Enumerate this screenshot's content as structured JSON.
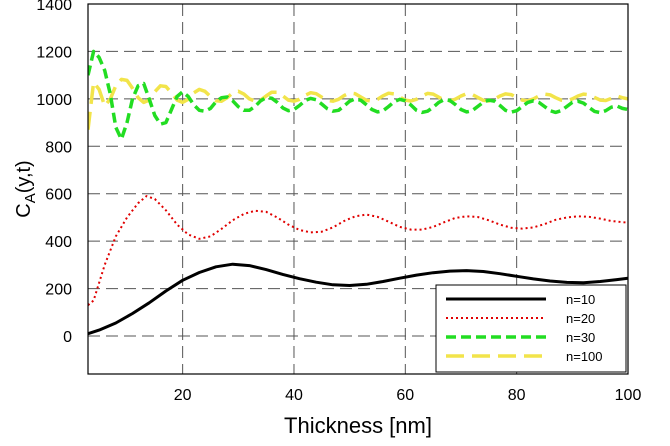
{
  "chart_data": {
    "type": "line",
    "title": "",
    "xlabel": "Thickness [nm]",
    "ylabel_main": "C",
    "ylabel_sub": "A",
    "ylabel_rest": "(y,t)",
    "xlim": [
      3,
      100
    ],
    "ylim": [
      -160,
      1400
    ],
    "x_ticks": [
      20,
      40,
      60,
      80,
      100
    ],
    "y_ticks": [
      0,
      200,
      400,
      600,
      800,
      1000,
      1200,
      1400
    ],
    "grid": true,
    "legend_position": "bottom-right",
    "series": [
      {
        "name": "n=10",
        "color": "#000000",
        "style": "solid",
        "x": [
          3,
          5,
          8,
          11,
          14,
          17,
          20,
          23,
          26,
          29,
          32,
          35,
          38,
          41,
          44,
          47,
          50,
          53,
          56,
          59,
          62,
          65,
          68,
          71,
          74,
          77,
          80,
          83,
          86,
          89,
          92,
          95,
          98,
          100
        ],
        "y": [
          10,
          25,
          55,
          95,
          140,
          190,
          235,
          268,
          292,
          303,
          297,
          280,
          260,
          242,
          227,
          216,
          213,
          218,
          230,
          244,
          257,
          267,
          274,
          276,
          272,
          263,
          252,
          241,
          232,
          226,
          225,
          230,
          238,
          244
        ]
      },
      {
        "name": "n=20",
        "color": "#e00000",
        "style": "dotted",
        "x": [
          3,
          4,
          6,
          8,
          10,
          12,
          13.5,
          15,
          17,
          19,
          21,
          23,
          25,
          27,
          29,
          31,
          33,
          35,
          37,
          39,
          41,
          43,
          45,
          47,
          49,
          51,
          53,
          55,
          57,
          59,
          61,
          63,
          65,
          67,
          69,
          71,
          73,
          75,
          77,
          79,
          81,
          83,
          85,
          87,
          89,
          91,
          93,
          95,
          97,
          100
        ],
        "y": [
          130,
          150,
          300,
          420,
          500,
          560,
          590,
          578,
          530,
          470,
          428,
          410,
          420,
          452,
          488,
          515,
          528,
          524,
          500,
          470,
          447,
          437,
          440,
          458,
          485,
          505,
          512,
          503,
          482,
          460,
          449,
          449,
          460,
          480,
          498,
          505,
          502,
          488,
          470,
          457,
          453,
          458,
          472,
          490,
          500,
          505,
          503,
          495,
          485,
          478
        ]
      },
      {
        "name": "n=30",
        "color": "#22dd22",
        "style": "dashed",
        "x": [
          3,
          4,
          5,
          6,
          7,
          8,
          9,
          10,
          11,
          12,
          13,
          14,
          15,
          16,
          17,
          18,
          19,
          20,
          21,
          22,
          23,
          24,
          25,
          26,
          27,
          28,
          29,
          30,
          31,
          32,
          33,
          34,
          35,
          36,
          37,
          38,
          39,
          40,
          41,
          42,
          43,
          44,
          45,
          46,
          47,
          48,
          49,
          50,
          51,
          52,
          53,
          54,
          55,
          56,
          57,
          58,
          59,
          60,
          61,
          62,
          63,
          64,
          65,
          66,
          67,
          68,
          69,
          70,
          71,
          72,
          73,
          74,
          75,
          76,
          77,
          78,
          79,
          80,
          81,
          82,
          83,
          84,
          85,
          86,
          87,
          88,
          89,
          90,
          91,
          92,
          93,
          94,
          95,
          96,
          97,
          98,
          99,
          100
        ],
        "y": [
          1100,
          1200,
          1175,
          1120,
          1020,
          880,
          830,
          900,
          1000,
          1055,
          1065,
          1000,
          930,
          893,
          900,
          955,
          1010,
          1030,
          1010,
          975,
          952,
          948,
          960,
          988,
          1005,
          1008,
          992,
          967,
          952,
          952,
          968,
          992,
          1005,
          1003,
          985,
          962,
          950,
          955,
          972,
          993,
          1002,
          996,
          978,
          958,
          948,
          952,
          970,
          990,
          1000,
          994,
          975,
          955,
          945,
          950,
          968,
          988,
          998,
          992,
          974,
          952,
          943,
          948,
          965,
          985,
          997,
          993,
          976,
          955,
          945,
          950,
          968,
          986,
          995,
          990,
          972,
          952,
          944,
          950,
          968,
          985,
          992,
          985,
          968,
          950,
          943,
          950,
          968,
          985,
          990,
          982,
          964,
          947,
          942,
          950,
          965,
          970,
          960,
          955
        ]
      },
      {
        "name": "n=100",
        "color": "#f2e44a",
        "style": "longdash",
        "x": [
          3,
          4,
          5,
          6,
          7,
          8,
          9,
          10,
          11,
          12,
          13,
          14,
          15,
          16,
          17,
          18,
          19,
          20,
          21,
          22,
          23,
          24,
          25,
          26,
          27,
          28,
          29,
          30,
          31,
          32,
          33,
          34,
          35,
          36,
          37,
          38,
          39,
          40,
          41,
          42,
          43,
          44,
          45,
          46,
          47,
          48,
          49,
          50,
          51,
          52,
          53,
          54,
          55,
          56,
          57,
          58,
          59,
          60,
          61,
          62,
          63,
          64,
          65,
          66,
          67,
          68,
          69,
          70,
          71,
          72,
          73,
          74,
          75,
          76,
          77,
          78,
          79,
          80,
          81,
          82,
          83,
          84,
          85,
          86,
          87,
          88,
          89,
          90,
          91,
          92,
          93,
          94,
          95,
          96,
          97,
          98,
          99,
          100
        ],
        "y": [
          870,
          1070,
          1040,
          970,
          1000,
          1055,
          1082,
          1078,
          1045,
          1005,
          985,
          995,
          1030,
          1055,
          1052,
          1025,
          995,
          985,
          998,
          1025,
          1040,
          1032,
          1010,
          992,
          990,
          1005,
          1025,
          1032,
          1020,
          1000,
          990,
          995,
          1012,
          1028,
          1028,
          1013,
          995,
          990,
          998,
          1015,
          1026,
          1022,
          1007,
          993,
          990,
          998,
          1014,
          1025,
          1022,
          1008,
          994,
          990,
          998,
          1013,
          1024,
          1021,
          1008,
          995,
          991,
          998,
          1012,
          1023,
          1020,
          1007,
          995,
          991,
          999,
          1012,
          1022,
          1019,
          1006,
          994,
          991,
          999,
          1012,
          1021,
          1018,
          1006,
          995,
          992,
          1000,
          1012,
          1020,
          1017,
          1005,
          995,
          992,
          1000,
          1012,
          1020,
          1017,
          1006,
          995,
          993,
          1002,
          1012,
          1005,
          1000
        ]
      }
    ]
  }
}
